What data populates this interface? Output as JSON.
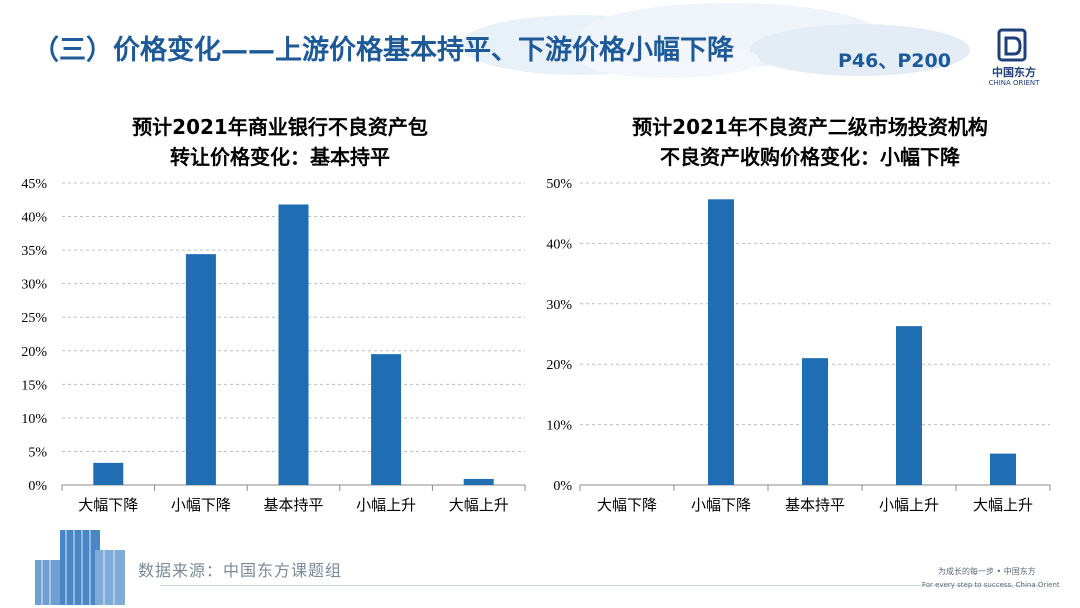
{
  "header": {
    "title": "（三）价格变化——上游价格基本持平、下游价格小幅下降",
    "page_ref": "P46、P200",
    "logo_cn": "中国东方",
    "logo_en": "CHINA ORIENT"
  },
  "colors": {
    "bar": "#1f6db3",
    "title": "#1f5a98",
    "grid": "#bfbfbf"
  },
  "chart_data": [
    {
      "type": "bar",
      "title_line1": "预计2021年商业银行不良资产包",
      "title_line2": "转让价格变化：基本持平",
      "categories": [
        "大幅下降",
        "小幅下降",
        "基本持平",
        "小幅上升",
        "大幅上升"
      ],
      "values": [
        3.3,
        34.4,
        41.8,
        19.5,
        0.9
      ],
      "ylim": [
        0,
        45
      ],
      "yticks": [
        0,
        5,
        10,
        15,
        20,
        25,
        30,
        35,
        40,
        45
      ],
      "ytick_labels": [
        "0%",
        "5%",
        "10%",
        "15%",
        "20%",
        "25%",
        "30%",
        "35%",
        "40%",
        "45%"
      ],
      "grid": true
    },
    {
      "type": "bar",
      "title_line1": "预计2021年不良资产二级市场投资机构",
      "title_line2": "不良资产收购价格变化：小幅下降",
      "categories": [
        "大幅下降",
        "小幅下降",
        "基本持平",
        "小幅上升",
        "大幅上升"
      ],
      "values": [
        0,
        47.3,
        21.0,
        26.3,
        5.2
      ],
      "ylim": [
        0,
        50
      ],
      "yticks": [
        0,
        10,
        20,
        30,
        40,
        50
      ],
      "ytick_labels": [
        "0%",
        "10%",
        "20%",
        "30%",
        "40%",
        "50%"
      ],
      "grid": true
    }
  ],
  "footer": {
    "source": "数据来源：中国东方课题组",
    "slogan_cn": "为成长的每一步 • 中国东方",
    "slogan_en": "For every step to success, China Orient"
  }
}
